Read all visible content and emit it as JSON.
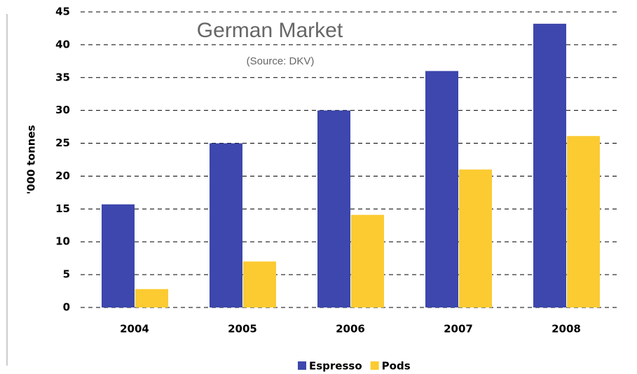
{
  "chart_data": {
    "type": "bar",
    "title": "German Market",
    "subtitle": "(Source: DKV)",
    "y_label": "'000 tonnes",
    "categories": [
      "2004",
      "2005",
      "2006",
      "2007",
      "2008"
    ],
    "series": [
      {
        "name": "Espresso",
        "color": "#3d47ad",
        "values": [
          15.7,
          25,
          30,
          36,
          43.2
        ]
      },
      {
        "name": "Pods",
        "color": "#fccb32",
        "values": [
          2.8,
          7,
          14.1,
          21,
          26.1
        ]
      }
    ],
    "ylim": [
      0,
      45
    ],
    "yticks": [
      0,
      5,
      10,
      15,
      20,
      25,
      30,
      35,
      40,
      45
    ],
    "grid": true,
    "legend": "bottom"
  }
}
